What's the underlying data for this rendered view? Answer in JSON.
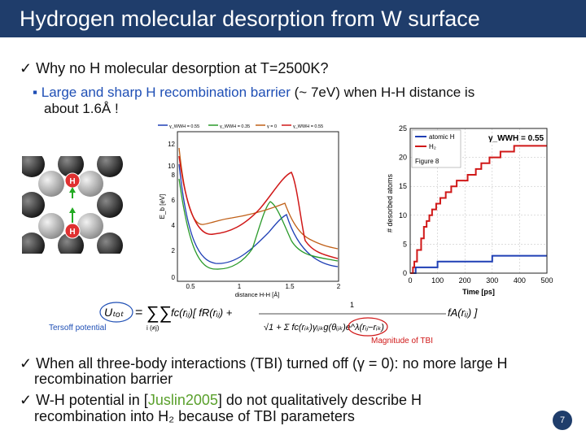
{
  "slide": {
    "title": "Hydrogen molecular desorption from W surface",
    "bullet1": "✓ Why no H molecular desorption at T=2500K?",
    "sub1_blue": "▪ Large and sharp H recombination barrier",
    "sub1_black": " (~ 7eV) when H-H distance is",
    "sub1_line2": "about 1.6Å !",
    "bullet2_line1": "✓ When all three-body interactions (TBI) turned off  (γ = 0): no more large H",
    "bullet2_line2": "recombination barrier",
    "bullet3_pre": "✓ W-H potential in [",
    "bullet3_ref": "Juslin2005",
    "bullet3_post": "] do not qualitatively describe H",
    "bullet3_line2": "recombination into H₂ because of TBI parameters",
    "page_number": "7"
  },
  "lattice": {
    "h_label": "H"
  },
  "energy_plot": {
    "legend": [
      "γ_WWH = 0.55",
      "γ_WWH = 0.35",
      "γ = 0",
      "γ_WWH = 0.55"
    ],
    "ylabel": "E_b [eV]",
    "xlabel": "distance H-H [Å]",
    "yticks": [
      "0",
      "2",
      "4",
      "6",
      "8",
      "10",
      "12"
    ],
    "xticks": [
      "0.5",
      "1",
      "1.5",
      "2"
    ]
  },
  "chart_data": {
    "type": "line",
    "title": "",
    "xlabel": "Time [ps]",
    "ylabel": "# desorbed atoms",
    "xlim": [
      0,
      500
    ],
    "ylim": [
      0,
      25
    ],
    "xticks": [
      "0",
      "100",
      "200",
      "300",
      "400",
      "500"
    ],
    "yticks": [
      "0",
      "5",
      "10",
      "15",
      "20",
      "25"
    ],
    "annotation": "γ_WWH = 0.55",
    "figure_label": "Figure 8",
    "series": [
      {
        "name": "atomic H",
        "color": "#1f3fb5",
        "x": [
          0,
          20,
          20,
          100,
          100,
          300,
          300,
          380,
          380,
          500
        ],
        "y": [
          0,
          0,
          1,
          1,
          2,
          2,
          3,
          3,
          3,
          3
        ]
      },
      {
        "name": "H₂",
        "color": "#d01818",
        "x": [
          0,
          10,
          15,
          25,
          40,
          50,
          60,
          70,
          80,
          95,
          110,
          130,
          150,
          170,
          190,
          210,
          240,
          260,
          290,
          330,
          380,
          420,
          500
        ],
        "y": [
          0,
          1,
          2,
          4,
          6,
          8,
          9,
          10,
          11,
          12,
          13,
          14,
          15,
          16,
          16,
          17,
          18,
          19,
          20,
          21,
          22,
          22,
          22
        ]
      }
    ]
  },
  "formula": {
    "label": "Tersoff potential",
    "magnitude_label": "Magnitude of TBI"
  }
}
